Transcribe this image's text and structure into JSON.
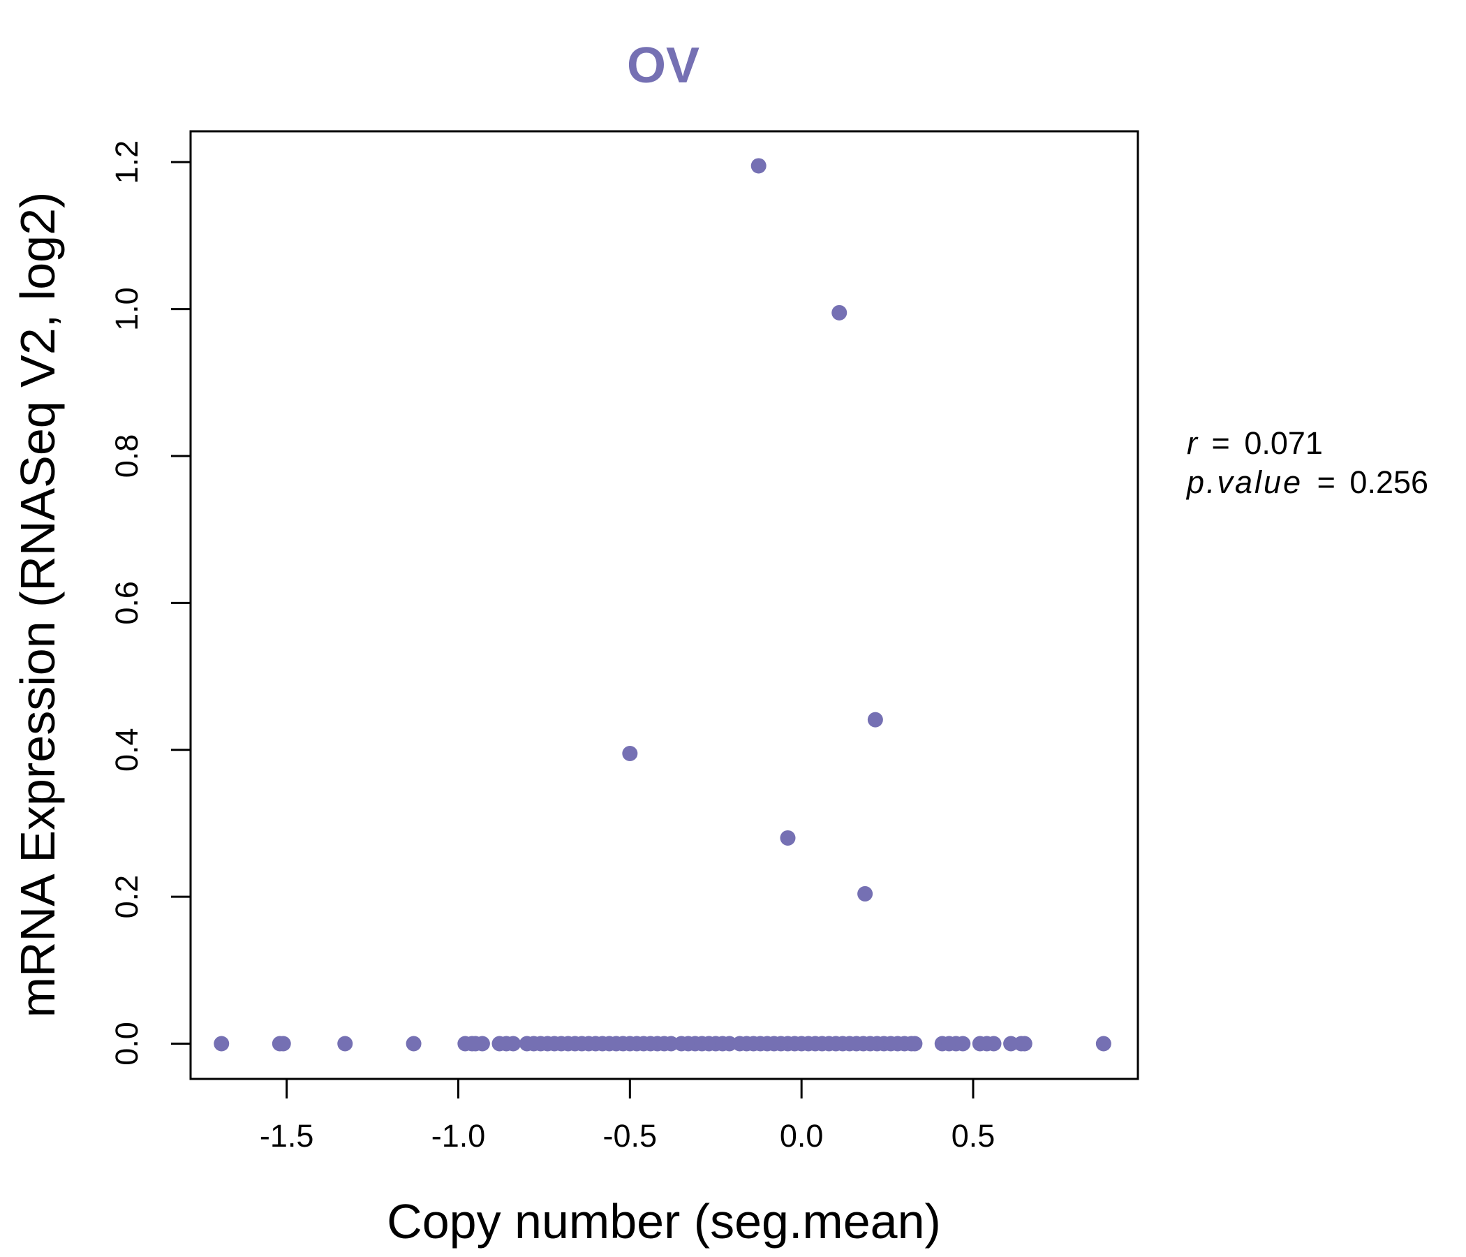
{
  "chart_data": {
    "type": "scatter",
    "title": "OV",
    "xlabel": "Copy number (seg.mean)",
    "ylabel": "mRNA Expression (RNASeq V2, log2)",
    "xlim": [
      -1.78,
      0.98
    ],
    "ylim": [
      -0.048,
      1.242
    ],
    "xticks": [
      -1.5,
      -1.0,
      -0.5,
      0.0,
      0.5
    ],
    "xtick_labels": [
      "-1.5",
      "-1.0",
      "-0.5",
      "0.0",
      "0.5"
    ],
    "yticks": [
      0.0,
      0.2,
      0.4,
      0.6,
      0.8,
      1.0,
      1.2
    ],
    "ytick_labels": [
      "0.0",
      "0.2",
      "0.4",
      "0.6",
      "0.8",
      "1.0",
      "1.2"
    ],
    "point_color": "#7570b3",
    "grid": false,
    "stats": {
      "r_label": "r",
      "r_value": "0.071",
      "p_label": "p.value",
      "p_value": "0.256",
      "equals": "="
    },
    "points": [
      {
        "x": -1.69,
        "y": 0.0
      },
      {
        "x": -1.52,
        "y": 0.0
      },
      {
        "x": -1.51,
        "y": 0.0
      },
      {
        "x": -1.33,
        "y": 0.0
      },
      {
        "x": -1.13,
        "y": 0.0
      },
      {
        "x": -0.98,
        "y": 0.0
      },
      {
        "x": -0.96,
        "y": 0.0
      },
      {
        "x": -0.95,
        "y": 0.0
      },
      {
        "x": -0.93,
        "y": 0.0
      },
      {
        "x": -0.88,
        "y": 0.0
      },
      {
        "x": -0.86,
        "y": 0.0
      },
      {
        "x": -0.84,
        "y": 0.0
      },
      {
        "x": -0.8,
        "y": 0.0
      },
      {
        "x": -0.78,
        "y": 0.0
      },
      {
        "x": -0.76,
        "y": 0.0
      },
      {
        "x": -0.74,
        "y": 0.0
      },
      {
        "x": -0.72,
        "y": 0.0
      },
      {
        "x": -0.7,
        "y": 0.0
      },
      {
        "x": -0.68,
        "y": 0.0
      },
      {
        "x": -0.66,
        "y": 0.0
      },
      {
        "x": -0.64,
        "y": 0.0
      },
      {
        "x": -0.62,
        "y": 0.0
      },
      {
        "x": -0.6,
        "y": 0.0
      },
      {
        "x": -0.58,
        "y": 0.0
      },
      {
        "x": -0.56,
        "y": 0.0
      },
      {
        "x": -0.54,
        "y": 0.0
      },
      {
        "x": -0.52,
        "y": 0.0
      },
      {
        "x": -0.5,
        "y": 0.0
      },
      {
        "x": -0.48,
        "y": 0.0
      },
      {
        "x": -0.46,
        "y": 0.0
      },
      {
        "x": -0.44,
        "y": 0.0
      },
      {
        "x": -0.42,
        "y": 0.0
      },
      {
        "x": -0.4,
        "y": 0.0
      },
      {
        "x": -0.38,
        "y": 0.0
      },
      {
        "x": -0.35,
        "y": 0.0
      },
      {
        "x": -0.33,
        "y": 0.0
      },
      {
        "x": -0.31,
        "y": 0.0
      },
      {
        "x": -0.29,
        "y": 0.0
      },
      {
        "x": -0.27,
        "y": 0.0
      },
      {
        "x": -0.25,
        "y": 0.0
      },
      {
        "x": -0.23,
        "y": 0.0
      },
      {
        "x": -0.21,
        "y": 0.0
      },
      {
        "x": -0.18,
        "y": 0.0
      },
      {
        "x": -0.16,
        "y": 0.0
      },
      {
        "x": -0.14,
        "y": 0.0
      },
      {
        "x": -0.12,
        "y": 0.0
      },
      {
        "x": -0.1,
        "y": 0.0
      },
      {
        "x": -0.08,
        "y": 0.0
      },
      {
        "x": -0.06,
        "y": 0.0
      },
      {
        "x": -0.04,
        "y": 0.0
      },
      {
        "x": -0.02,
        "y": 0.0
      },
      {
        "x": 0.0,
        "y": 0.0
      },
      {
        "x": 0.02,
        "y": 0.0
      },
      {
        "x": 0.04,
        "y": 0.0
      },
      {
        "x": 0.06,
        "y": 0.0
      },
      {
        "x": 0.08,
        "y": 0.0
      },
      {
        "x": 0.1,
        "y": 0.0
      },
      {
        "x": 0.12,
        "y": 0.0
      },
      {
        "x": 0.14,
        "y": 0.0
      },
      {
        "x": 0.16,
        "y": 0.0
      },
      {
        "x": 0.18,
        "y": 0.0
      },
      {
        "x": 0.2,
        "y": 0.0
      },
      {
        "x": 0.22,
        "y": 0.0
      },
      {
        "x": 0.24,
        "y": 0.0
      },
      {
        "x": 0.26,
        "y": 0.0
      },
      {
        "x": 0.28,
        "y": 0.0
      },
      {
        "x": 0.3,
        "y": 0.0
      },
      {
        "x": 0.32,
        "y": 0.0
      },
      {
        "x": 0.33,
        "y": 0.0
      },
      {
        "x": 0.41,
        "y": 0.0
      },
      {
        "x": 0.43,
        "y": 0.0
      },
      {
        "x": 0.45,
        "y": 0.0
      },
      {
        "x": 0.47,
        "y": 0.0
      },
      {
        "x": 0.52,
        "y": 0.0
      },
      {
        "x": 0.54,
        "y": 0.0
      },
      {
        "x": 0.56,
        "y": 0.0
      },
      {
        "x": 0.61,
        "y": 0.0
      },
      {
        "x": 0.64,
        "y": 0.0
      },
      {
        "x": 0.65,
        "y": 0.0
      },
      {
        "x": 0.88,
        "y": 0.0
      },
      {
        "x": -0.125,
        "y": 1.195
      },
      {
        "x": 0.11,
        "y": 0.995
      },
      {
        "x": 0.215,
        "y": 0.441
      },
      {
        "x": -0.5,
        "y": 0.395
      },
      {
        "x": -0.04,
        "y": 0.28
      },
      {
        "x": 0.185,
        "y": 0.204
      }
    ]
  }
}
